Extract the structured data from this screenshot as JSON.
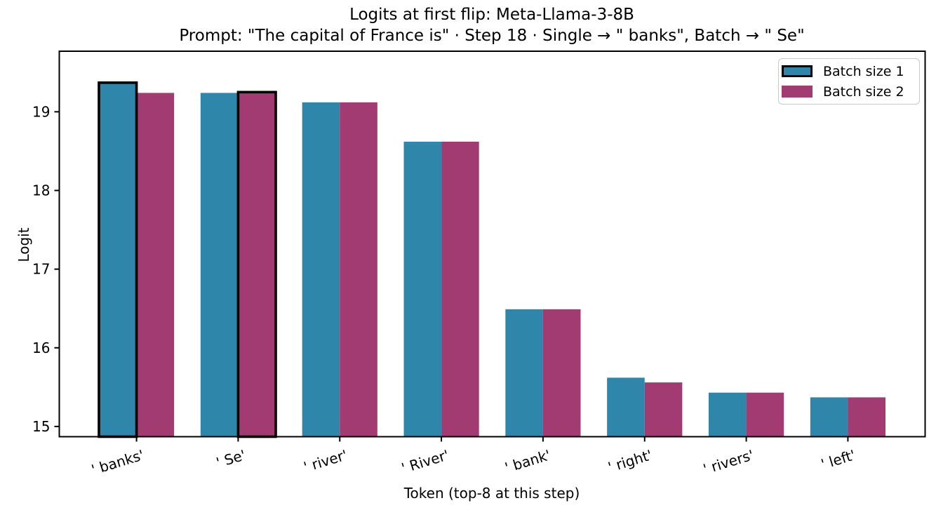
{
  "title": "Logits at first flip: Meta-Llama-3-8B",
  "subtitle": "Prompt: \"The capital of France is\" · Step 18 · Single → \" banks\", Batch → \" Se\"",
  "chart_data": {
    "type": "bar",
    "title": "Logits at first flip: Meta-Llama-3-8B",
    "subtitle": "Prompt: \"The capital of France is\" · Step 18 · Single → \" banks\", Batch → \" Se\"",
    "xlabel": "Token (top-8 at this step)",
    "ylabel": "Logit",
    "categories": [
      "' banks'",
      "' Se'",
      "' river'",
      "' River'",
      "' bank'",
      "' right'",
      "' rivers'",
      "' left'"
    ],
    "series": [
      {
        "name": "Batch size 1",
        "color": "#2E86AB",
        "values": [
          19.37,
          19.24,
          19.12,
          18.62,
          16.49,
          15.62,
          15.43,
          15.37
        ]
      },
      {
        "name": "Batch size 2",
        "color": "#A23B72",
        "values": [
          19.24,
          19.25,
          19.12,
          18.62,
          16.49,
          15.56,
          15.43,
          15.37
        ]
      }
    ],
    "highlights": [
      {
        "series": 0,
        "category": 0,
        "note": "single-run chosen token ' banks'"
      },
      {
        "series": 1,
        "category": 1,
        "note": "batch-run chosen token ' Se'"
      }
    ],
    "highlight_edge_color": "#000000",
    "yticks": [
      15,
      16,
      17,
      18,
      19
    ],
    "ylim": [
      14.87,
      19.77
    ],
    "xtick_rotation_deg": 17,
    "grid": false,
    "legend_position": "upper right",
    "background_color": "#ffffff",
    "spine_color": "#000000"
  }
}
